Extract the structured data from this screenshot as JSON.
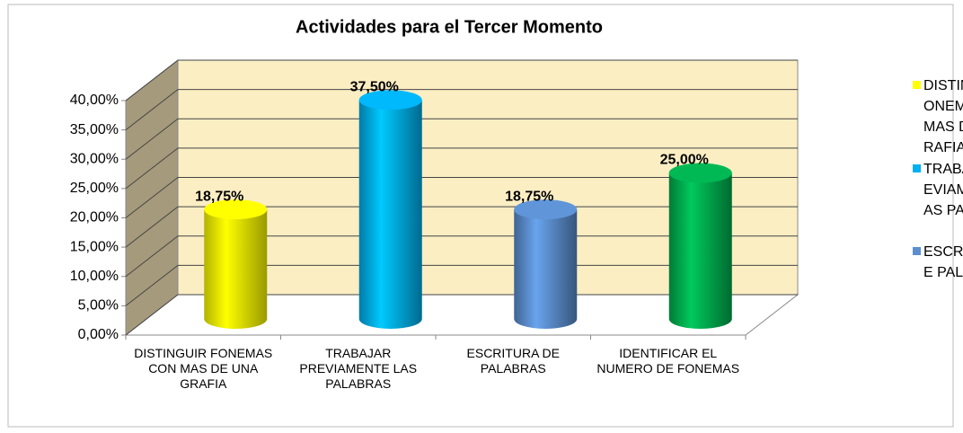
{
  "chart_data": {
    "type": "bar3d",
    "title": "Actividades para el Tercer Momento",
    "categories": [
      "DISTINGUIR FONEMAS CON MAS DE UNA GRAFIA",
      "TRABAJAR PREVIAMENTE LAS PALABRAS",
      "ESCRITURA DE PALABRAS",
      "IDENTIFICAR EL NUMERO DE FONEMAS"
    ],
    "values": [
      18.75,
      37.5,
      18.75,
      25
    ],
    "value_labels": [
      "18,75%",
      "37,50%",
      "18,75%",
      "25,00%"
    ],
    "colors": [
      "#ffff00",
      "#00b0f0",
      "#5b8fcf",
      "#00b050"
    ],
    "legend": [
      "DISTINGUIR FONEMAS CON MAS DE UNA GRAFIA",
      "TRABAJAR PREVIAMENTE LAS PALABRAS",
      "ESCRITURA DE PALABRAS"
    ],
    "ylim": [
      0,
      40
    ],
    "yticks": [
      {
        "value": 0,
        "label": "0,00%"
      },
      {
        "value": 5,
        "label": "5,00%"
      },
      {
        "value": 10,
        "label": "10,00%"
      },
      {
        "value": 15,
        "label": "15,00%"
      },
      {
        "value": 20,
        "label": "20,00%"
      },
      {
        "value": 25,
        "label": "25,00%"
      },
      {
        "value": 30,
        "label": "30,00%"
      },
      {
        "value": 35,
        "label": "35,00%"
      },
      {
        "value": 40,
        "label": "40,00%"
      }
    ],
    "grid": true
  }
}
